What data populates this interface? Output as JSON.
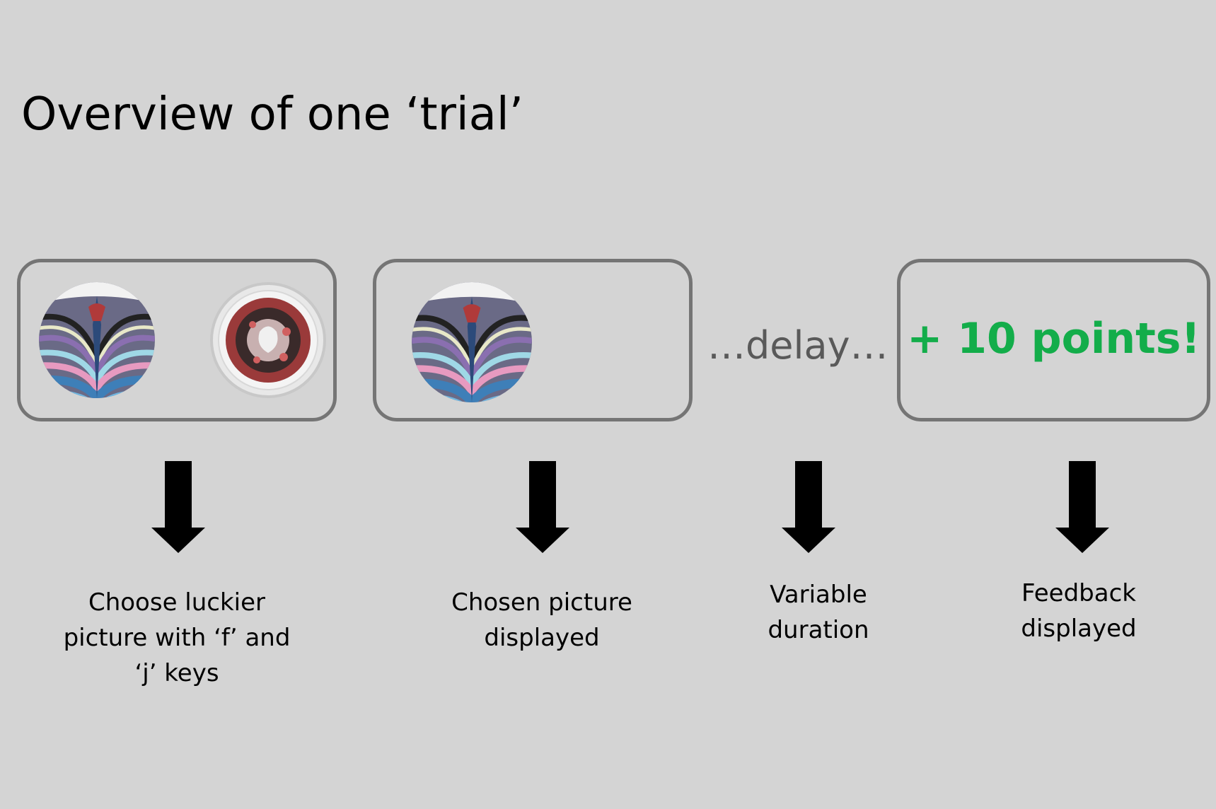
{
  "title": "Overview of one ‘trial’",
  "stages": [
    {
      "label_lines": [
        "Choose luckier",
        "picture with ‘f’ and",
        "‘j’ keys"
      ]
    },
    {
      "label_lines": [
        "Chosen picture",
        "displayed"
      ]
    },
    {
      "label_lines": [
        "Variable",
        "duration"
      ]
    },
    {
      "label_lines": [
        "Feedback",
        "displayed"
      ]
    }
  ],
  "delay_text": "…delay…",
  "feedback_text": "+ 10 points!",
  "colors": {
    "background": "#d4d4d4",
    "box_border": "#757575",
    "delay_text": "#595959",
    "feedback_text": "#13ad4a",
    "arrow": "#000000"
  },
  "icons": [
    "marbled-pattern-picture",
    "petri-dish-picture",
    "down-arrow-icon"
  ]
}
